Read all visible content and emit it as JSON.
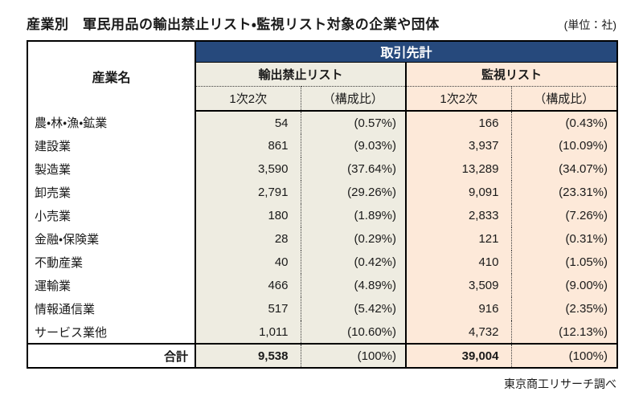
{
  "title": "産業別　軍民用品の輸出禁止リスト・監視リスト対象の企業や団体",
  "unit_note": "(単位：社)",
  "source_note": "東京商工リサーチ調べ",
  "colors": {
    "header_navy": "#26497C",
    "ban_column_bg": "#EEECE1",
    "watch_column_bg": "#FDE9D9",
    "border_black": "#000000"
  },
  "table": {
    "industry_header": "産業名",
    "group_header": "取引先計",
    "ban_group_label": "輸出禁止リスト",
    "watch_group_label": "監視リスト",
    "count_label": "1次2次",
    "ratio_label": "（構成比）",
    "rows": [
      {
        "name": "農・林・漁・鉱業",
        "ban_count": "54",
        "ban_ratio": "(0.57%)",
        "watch_count": "166",
        "watch_ratio": "(0.43%)"
      },
      {
        "name": "建設業",
        "ban_count": "861",
        "ban_ratio": "(9.03%)",
        "watch_count": "3,937",
        "watch_ratio": "(10.09%)"
      },
      {
        "name": "製造業",
        "ban_count": "3,590",
        "ban_ratio": "(37.64%)",
        "watch_count": "13,289",
        "watch_ratio": "(34.07%)"
      },
      {
        "name": "卸売業",
        "ban_count": "2,791",
        "ban_ratio": "(29.26%)",
        "watch_count": "9,091",
        "watch_ratio": "(23.31%)"
      },
      {
        "name": "小売業",
        "ban_count": "180",
        "ban_ratio": "(1.89%)",
        "watch_count": "2,833",
        "watch_ratio": "(7.26%)"
      },
      {
        "name": "金融・保険業",
        "ban_count": "28",
        "ban_ratio": "(0.29%)",
        "watch_count": "121",
        "watch_ratio": "(0.31%)"
      },
      {
        "name": "不動産業",
        "ban_count": "40",
        "ban_ratio": "(0.42%)",
        "watch_count": "410",
        "watch_ratio": "(1.05%)"
      },
      {
        "name": "運輸業",
        "ban_count": "466",
        "ban_ratio": "(4.89%)",
        "watch_count": "3,509",
        "watch_ratio": "(9.00%)"
      },
      {
        "name": "情報通信業",
        "ban_count": "517",
        "ban_ratio": "(5.42%)",
        "watch_count": "916",
        "watch_ratio": "(2.35%)"
      },
      {
        "name": "サービス業他",
        "ban_count": "1,011",
        "ban_ratio": "(10.60%)",
        "watch_count": "4,732",
        "watch_ratio": "(12.13%)"
      }
    ],
    "total": {
      "name": "合計",
      "ban_count": "9,538",
      "ban_ratio": "(100%)",
      "watch_count": "39,004",
      "watch_ratio": "(100%)"
    }
  },
  "chart_data": {
    "type": "table",
    "title": "産業別　軍民用品の輸出禁止リスト・監視リスト対象の企業や団体",
    "unit": "社",
    "source": "東京商工リサーチ調べ",
    "columns": [
      "産業名",
      "輸出禁止リスト 1次2次",
      "輸出禁止リスト 構成比%",
      "監視リスト 1次2次",
      "監視リスト 構成比%"
    ],
    "rows": [
      [
        "農・林・漁・鉱業",
        54,
        0.57,
        166,
        0.43
      ],
      [
        "建設業",
        861,
        9.03,
        3937,
        10.09
      ],
      [
        "製造業",
        3590,
        37.64,
        13289,
        34.07
      ],
      [
        "卸売業",
        2791,
        29.26,
        9091,
        23.31
      ],
      [
        "小売業",
        180,
        1.89,
        2833,
        7.26
      ],
      [
        "金融・保険業",
        28,
        0.29,
        121,
        0.31
      ],
      [
        "不動産業",
        40,
        0.42,
        410,
        1.05
      ],
      [
        "運輸業",
        466,
        4.89,
        3509,
        9.0
      ],
      [
        "情報通信業",
        517,
        5.42,
        916,
        2.35
      ],
      [
        "サービス業他",
        1011,
        10.6,
        4732,
        12.13
      ]
    ],
    "totals": [
      "合計",
      9538,
      100,
      39004,
      100
    ]
  }
}
